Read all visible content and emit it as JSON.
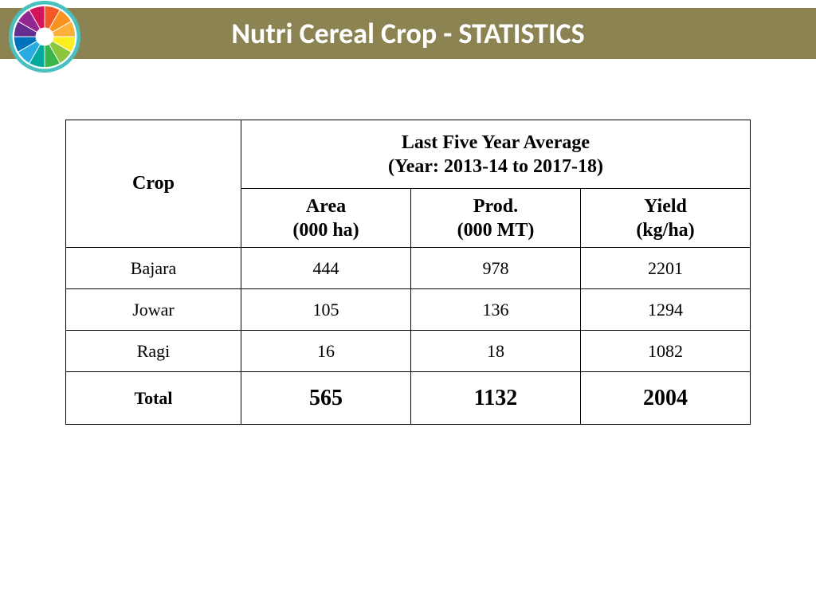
{
  "header": {
    "title": "Nutri Cereal Crop - STATISTICS",
    "bar_color": "#8b8452",
    "title_color": "#ffffff",
    "title_fontsize": 36
  },
  "logo": {
    "name": "color-wheel-icon",
    "segment_colors": [
      "#f15a24",
      "#f7931e",
      "#fbb03b",
      "#fcee21",
      "#8cc63f",
      "#39b54a",
      "#00a99d",
      "#29abe2",
      "#0071bc",
      "#662d91",
      "#93278f",
      "#d4145a"
    ],
    "ring_color": "#48c0c0",
    "center_color": "#ffffff"
  },
  "table": {
    "type": "table",
    "border_color": "#000000",
    "background_color": "#ffffff",
    "crop_header": "Crop",
    "span_header_line1": "Last Five Year Average",
    "span_header_line2": "(Year: 2013-14 to 2017-18)",
    "columns": [
      {
        "label_line1": "Area",
        "label_line2": "(000 ha)"
      },
      {
        "label_line1": "Prod.",
        "label_line2": "(000 MT)"
      },
      {
        "label_line1": "Yield",
        "label_line2": "(kg/ha)"
      }
    ],
    "rows": [
      {
        "crop": "Bajara",
        "area": "444",
        "prod": "978",
        "yield": "2201"
      },
      {
        "crop": "Jowar",
        "area": "105",
        "prod": "136",
        "yield": "1294"
      },
      {
        "crop": "Ragi",
        "area": "16",
        "prod": "18",
        "yield": "1082"
      }
    ],
    "total": {
      "label": "Total",
      "area": "565",
      "prod": "1132",
      "yield": "2004"
    },
    "header_fontsize": 24,
    "data_fontsize": 22,
    "total_value_fontsize": 28
  }
}
